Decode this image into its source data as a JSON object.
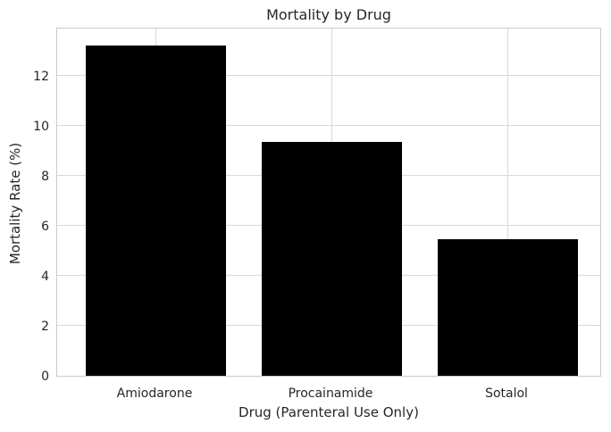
{
  "figure": {
    "background": "#ffffff",
    "text_color": "#262626",
    "grid_color": "#d9d9d9",
    "spine_color": "#c9c9c9"
  },
  "chart_data": {
    "type": "bar",
    "title": "Mortality by Drug",
    "xlabel": "Drug (Parenteral Use Only)",
    "ylabel": "Mortality Rate (%)",
    "categories": [
      "Amiodarone",
      "Procainamide",
      "Sotalol"
    ],
    "values": [
      13.2,
      9.35,
      5.45
    ],
    "bar_color": "#000000",
    "yticks": [
      0,
      2,
      4,
      6,
      8,
      10,
      12
    ],
    "ylim": [
      0,
      13.96
    ],
    "grid": true,
    "legend_position": "none"
  }
}
